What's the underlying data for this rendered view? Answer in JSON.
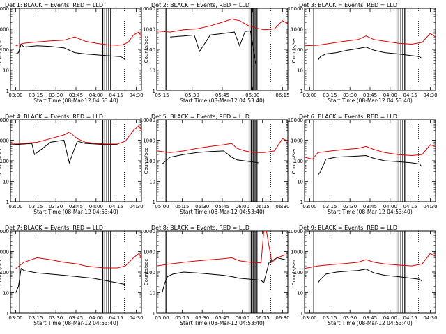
{
  "page": {
    "title_template": "Det {n}: BLACK = Events, RED = LLD",
    "xlabel": "Start Time (08-Mar-12 04:53:40)",
    "ylabel": "Counts/sec"
  },
  "colors": {
    "events": "#000000",
    "lld": "#e00000",
    "axis": "#000000",
    "background": "#ffffff"
  },
  "chart_data": [
    {
      "type": "line",
      "title": "Det 1: BLACK = Events, RED = LLD",
      "xlabel": "Start Time (08-Mar-12 04:53:40)",
      "ylabel": "Counts/sec",
      "yscale": "log",
      "ylim": [
        1,
        10000
      ],
      "xlim_minutes_after_start": [
        0,
        98
      ],
      "xtick_labels": [
        "03:00",
        "03:15",
        "03:30",
        "03:45",
        "04:00",
        "04:15",
        "04:30"
      ],
      "ytick_labels": [
        "1",
        "10",
        "100",
        "1000",
        "10000"
      ],
      "series": [
        {
          "name": "Events",
          "color": "black",
          "x": [
            4,
            6,
            8,
            10,
            20,
            30,
            40,
            48,
            56,
            64,
            72,
            82,
            84,
            86
          ],
          "y": [
            60,
            70,
            180,
            130,
            150,
            140,
            120,
            70,
            60,
            55,
            50,
            45,
            40,
            30
          ]
        },
        {
          "name": "LLD",
          "color": "red",
          "x": [
            4,
            10,
            20,
            30,
            40,
            48,
            56,
            64,
            72,
            80,
            84,
            88,
            92,
            96,
            98
          ],
          "y": [
            150,
            200,
            230,
            260,
            280,
            400,
            250,
            200,
            170,
            160,
            170,
            220,
            500,
            700,
            400
          ]
        }
      ]
    },
    {
      "type": "line",
      "title": "Det 2: BLACK = Events, RED = LLD",
      "xlabel": "Start Time (08-Mar-12 04:53:40)",
      "ylabel": "Counts/sec",
      "yscale": "log",
      "ylim": [
        1,
        10000
      ],
      "xlim_minutes_after_start": [
        0,
        98
      ],
      "xtick_labels": [
        "05:15",
        "05:30",
        "05:45",
        "06:00",
        "06:15"
      ],
      "ytick_labels": [
        "1",
        "10",
        "100",
        "1000",
        "10000"
      ],
      "series": [
        {
          "name": "Events",
          "color": "black",
          "x": [
            10,
            20,
            28,
            32,
            40,
            50,
            58,
            62,
            66,
            70,
            74
          ],
          "y": [
            400,
            450,
            500,
            80,
            500,
            600,
            700,
            150,
            750,
            800,
            20
          ]
        },
        {
          "name": "LLD",
          "color": "red",
          "x": [
            0,
            10,
            20,
            30,
            40,
            50,
            56,
            62,
            68,
            72,
            80,
            88,
            94,
            98
          ],
          "y": [
            800,
            700,
            900,
            1000,
            1400,
            2200,
            3000,
            2500,
            1500,
            1200,
            900,
            1000,
            2500,
            1800
          ]
        }
      ]
    },
    {
      "type": "line",
      "title": "Det 3: BLACK = Events, RED = LLD",
      "xlabel": "Start Time (08-Mar-12 04:53:40)",
      "ylabel": "Counts/sec",
      "yscale": "log",
      "ylim": [
        1,
        10000
      ],
      "xlim_minutes_after_start": [
        0,
        98
      ],
      "xtick_labels": [
        "03:00",
        "03:15",
        "03:30",
        "03:45",
        "04:00",
        "04:15",
        "04:30"
      ],
      "ytick_labels": [
        "1",
        "10",
        "100",
        "1000",
        "10000"
      ],
      "series": [
        {
          "name": "Events",
          "color": "black",
          "x": [
            10,
            12,
            16,
            24,
            32,
            40,
            46,
            52,
            60,
            70,
            80,
            86,
            88
          ],
          "y": [
            30,
            45,
            60,
            70,
            90,
            110,
            130,
            90,
            70,
            60,
            50,
            45,
            35
          ]
        },
        {
          "name": "LLD",
          "color": "red",
          "x": [
            0,
            10,
            20,
            30,
            40,
            46,
            52,
            60,
            70,
            80,
            88,
            94,
            98
          ],
          "y": [
            150,
            160,
            200,
            250,
            300,
            450,
            300,
            250,
            200,
            180,
            220,
            600,
            400
          ]
        }
      ]
    },
    {
      "type": "line",
      "title": "Det 4: BLACK = Events, RED = LLD",
      "xlabel": "Start Time (08-Mar-12 04:53:40)",
      "ylabel": "Counts/sec",
      "yscale": "log",
      "ylim": [
        1,
        10000
      ],
      "xlim_minutes_after_start": [
        0,
        98
      ],
      "xtick_labels": [
        "03:00",
        "03:15",
        "03:30",
        "03:45",
        "04:00",
        "04:15",
        "04:30"
      ],
      "ytick_labels": [
        "1",
        "10",
        "100",
        "1000",
        "10000"
      ],
      "series": [
        {
          "name": "Events",
          "color": "black",
          "x": [
            0,
            10,
            16,
            18,
            30,
            40,
            44,
            50,
            56,
            64,
            72,
            80
          ],
          "y": [
            600,
            650,
            700,
            200,
            800,
            1000,
            80,
            900,
            700,
            650,
            600,
            600
          ]
        },
        {
          "name": "LLD",
          "color": "red",
          "x": [
            0,
            10,
            20,
            30,
            40,
            44,
            50,
            56,
            64,
            72,
            80,
            86,
            92,
            96,
            98
          ],
          "y": [
            700,
            700,
            800,
            1200,
            1800,
            2500,
            1200,
            800,
            700,
            650,
            650,
            900,
            3000,
            5000,
            3000
          ]
        }
      ]
    },
    {
      "type": "line",
      "title": "Det 5: BLACK = Events, RED = LLD",
      "xlabel": "Start Time (08-Mar-12 04:53:40)",
      "ylabel": "Counts/sec",
      "yscale": "log",
      "ylim": [
        1,
        10000
      ],
      "xlim_minutes_after_start": [
        0,
        98
      ],
      "xtick_labels": [
        "05:00",
        "05:15",
        "05:30",
        "05:45",
        "06:00",
        "06:15",
        "06:30"
      ],
      "ytick_labels": [
        "1",
        "10",
        "100",
        "1000",
        "10000"
      ],
      "series": [
        {
          "name": "Events",
          "color": "black",
          "x": [
            4,
            6,
            10,
            20,
            30,
            40,
            50,
            56,
            60,
            70,
            76
          ],
          "y": [
            70,
            90,
            150,
            200,
            250,
            280,
            300,
            150,
            110,
            90,
            80
          ]
        },
        {
          "name": "LLD",
          "color": "red",
          "x": [
            0,
            10,
            20,
            30,
            40,
            50,
            56,
            60,
            66,
            72,
            80,
            88,
            94,
            98
          ],
          "y": [
            300,
            250,
            300,
            400,
            500,
            600,
            700,
            400,
            300,
            250,
            250,
            300,
            1200,
            900
          ]
        }
      ]
    },
    {
      "type": "line",
      "title": "Det 6: BLACK = Events, RED = LLD",
      "xlabel": "Start Time (08-Mar-12 04:53:40)",
      "ylabel": "Counts/sec",
      "yscale": "log",
      "ylim": [
        1,
        10000
      ],
      "xlim_minutes_after_start": [
        0,
        98
      ],
      "xtick_labels": [
        "03:00",
        "03:15",
        "03:30",
        "03:45",
        "04:00",
        "04:15",
        "04:30"
      ],
      "ytick_labels": [
        "1",
        "10",
        "100",
        "1000",
        "10000"
      ],
      "series": [
        {
          "name": "Events",
          "color": "black",
          "x": [
            10,
            12,
            16,
            24,
            32,
            40,
            46,
            52,
            60,
            70,
            80,
            86,
            88
          ],
          "y": [
            20,
            30,
            120,
            150,
            160,
            170,
            180,
            130,
            100,
            90,
            80,
            70,
            50
          ]
        },
        {
          "name": "LLD",
          "color": "red",
          "x": [
            0,
            6,
            10,
            20,
            30,
            40,
            46,
            52,
            60,
            70,
            80,
            88,
            94,
            98
          ],
          "y": [
            150,
            120,
            250,
            300,
            350,
            400,
            500,
            350,
            250,
            200,
            180,
            200,
            600,
            500
          ]
        }
      ]
    },
    {
      "type": "line",
      "title": "Det 7: BLACK = Events, RED = LLD",
      "xlabel": "Start Time (08-Mar-12 04:53:40)",
      "ylabel": "Counts/sec",
      "yscale": "log",
      "ylim": [
        1,
        10000
      ],
      "xlim_minutes_after_start": [
        0,
        98
      ],
      "xtick_labels": [
        "03:00",
        "03:15",
        "03:30",
        "03:45",
        "04:00",
        "04:15",
        "04:30"
      ],
      "ytick_labels": [
        "1",
        "10",
        "100",
        "1000",
        "10000"
      ],
      "series": [
        {
          "name": "Events",
          "color": "black",
          "x": [
            4,
            6,
            8,
            10,
            20,
            30,
            40,
            50,
            56,
            62,
            70,
            80,
            86
          ],
          "y": [
            10,
            20,
            150,
            120,
            90,
            80,
            70,
            60,
            55,
            50,
            40,
            30,
            25
          ]
        },
        {
          "name": "LLD",
          "color": "red",
          "x": [
            4,
            10,
            20,
            30,
            40,
            50,
            56,
            62,
            70,
            80,
            86,
            92,
            96,
            98
          ],
          "y": [
            150,
            300,
            500,
            400,
            300,
            250,
            200,
            180,
            160,
            160,
            200,
            500,
            800,
            500
          ]
        }
      ]
    },
    {
      "type": "line",
      "title": "Det 8: BLACK = Events, RED = LLD",
      "xlabel": "Start Time (08-Mar-12 04:53:40)",
      "ylabel": "Counts/sec",
      "yscale": "log",
      "ylim": [
        1,
        10000
      ],
      "xlim_minutes_after_start": [
        0,
        98
      ],
      "xtick_labels": [
        "05:00",
        "05:15",
        "05:30",
        "05:45",
        "06:00",
        "06:15",
        "06:30"
      ],
      "ytick_labels": [
        "1",
        "10",
        "100",
        "1000",
        "10000"
      ],
      "series": [
        {
          "name": "Events",
          "color": "black",
          "x": [
            4,
            6,
            8,
            12,
            20,
            30,
            40,
            50,
            56,
            62,
            70,
            78,
            80,
            84,
            90,
            96
          ],
          "y": [
            10,
            30,
            60,
            80,
            100,
            90,
            80,
            70,
            60,
            50,
            45,
            40,
            30,
            300,
            500,
            400
          ]
        },
        {
          "name": "LLD",
          "color": "red",
          "x": [
            0,
            10,
            20,
            30,
            40,
            50,
            56,
            62,
            70,
            78,
            80,
            82,
            86,
            90,
            96
          ],
          "y": [
            200,
            250,
            300,
            350,
            400,
            450,
            500,
            350,
            300,
            280,
            10000,
            10000,
            300,
            500,
            700
          ]
        }
      ]
    },
    {
      "type": "line",
      "title": "Det 9: BLACK = Events, RED = LLD",
      "xlabel": "Start Time (08-Mar-12 04:53:40)",
      "ylabel": "Counts/sec",
      "yscale": "log",
      "ylim": [
        1,
        10000
      ],
      "xlim_minutes_after_start": [
        0,
        98
      ],
      "xtick_labels": [
        "03:00",
        "03:15",
        "03:30",
        "03:45",
        "04:00",
        "04:15",
        "04:30"
      ],
      "ytick_labels": [
        "1",
        "10",
        "100",
        "1000",
        "10000"
      ],
      "series": [
        {
          "name": "Events",
          "color": "black",
          "x": [
            10,
            12,
            16,
            24,
            32,
            40,
            46,
            52,
            60,
            70,
            80,
            86,
            88
          ],
          "y": [
            30,
            45,
            80,
            100,
            110,
            120,
            140,
            90,
            70,
            60,
            50,
            45,
            35
          ]
        },
        {
          "name": "LLD",
          "color": "red",
          "x": [
            0,
            10,
            20,
            30,
            40,
            46,
            52,
            60,
            70,
            80,
            88,
            94,
            98
          ],
          "y": [
            150,
            200,
            230,
            260,
            300,
            400,
            300,
            250,
            220,
            200,
            250,
            800,
            600
          ]
        }
      ]
    }
  ]
}
